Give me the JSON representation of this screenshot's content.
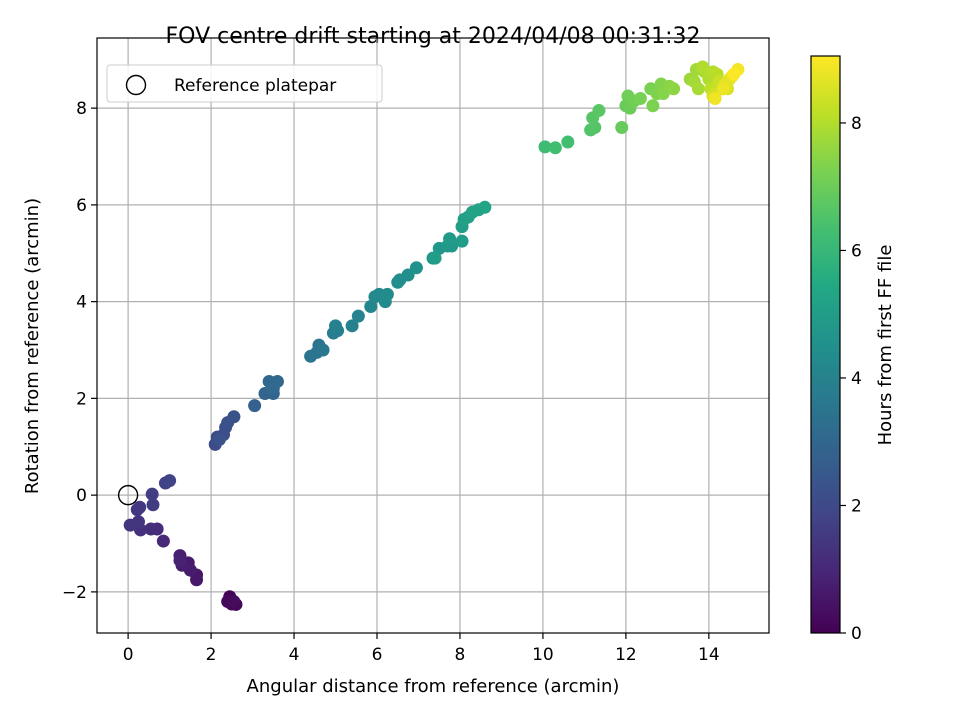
{
  "chart_data": {
    "type": "scatter",
    "title": "FOV centre drift starting at 2024/04/08 00:31:32",
    "xlabel": "Angular distance from reference (arcmin)",
    "ylabel": "Rotation from reference (arcmin)",
    "xlim": [
      -0.75,
      15.45
    ],
    "ylim": [
      -2.85,
      9.45
    ],
    "xticks": [
      0,
      2,
      4,
      6,
      8,
      10,
      12,
      14
    ],
    "xtick_labels": [
      "0",
      "2",
      "4",
      "6",
      "8",
      "10",
      "12",
      "14"
    ],
    "yticks": [
      -2,
      0,
      2,
      4,
      6,
      8
    ],
    "ytick_labels": [
      "−2",
      "0",
      "2",
      "4",
      "6",
      "8"
    ],
    "grid": true,
    "legend": {
      "placement": "top-left",
      "entries": [
        {
          "label": "Reference platepar",
          "marker": "hollow-circle"
        }
      ]
    },
    "reference_point": {
      "x": 0,
      "y": 0
    },
    "colorbar": {
      "label": "Hours from first FF file",
      "colormap": "viridis",
      "range": [
        0,
        9.05
      ],
      "ticks": [
        0,
        2,
        4,
        6,
        8
      ],
      "tick_labels": [
        "0",
        "2",
        "4",
        "6",
        "8"
      ]
    },
    "points": [
      [
        2.45,
        -2.1,
        0.05
      ],
      [
        2.5,
        -2.25,
        0.1
      ],
      [
        2.6,
        -2.26,
        0.15
      ],
      [
        2.4,
        -2.2,
        0.2
      ],
      [
        2.55,
        -2.2,
        0.25
      ],
      [
        1.65,
        -1.65,
        0.55
      ],
      [
        1.65,
        -1.75,
        0.6
      ],
      [
        1.45,
        -1.4,
        0.65
      ],
      [
        1.5,
        -1.55,
        0.7
      ],
      [
        1.3,
        -1.45,
        0.75
      ],
      [
        1.25,
        -1.25,
        0.8
      ],
      [
        1.25,
        -1.35,
        0.85
      ],
      [
        0.85,
        -0.95,
        1.05
      ],
      [
        0.7,
        -0.7,
        1.15
      ],
      [
        0.55,
        -0.7,
        1.2
      ],
      [
        0.3,
        -0.72,
        1.3
      ],
      [
        0.25,
        -0.55,
        1.35
      ],
      [
        0.05,
        -0.62,
        1.4
      ],
      [
        0.22,
        -0.3,
        1.45
      ],
      [
        0.28,
        -0.25,
        1.5
      ],
      [
        0.6,
        -0.2,
        1.6
      ],
      [
        0.58,
        0.02,
        1.65
      ],
      [
        0.9,
        0.25,
        1.75
      ],
      [
        1.0,
        0.3,
        1.8
      ],
      [
        2.1,
        1.05,
        2.05
      ],
      [
        2.15,
        1.2,
        2.1
      ],
      [
        2.3,
        1.25,
        2.15
      ],
      [
        2.35,
        1.4,
        2.2
      ],
      [
        2.4,
        1.5,
        2.25
      ],
      [
        2.55,
        1.62,
        2.3
      ],
      [
        2.2,
        1.15,
        2.35
      ],
      [
        3.05,
        1.85,
        2.8
      ],
      [
        3.3,
        2.1,
        2.9
      ],
      [
        3.5,
        2.1,
        2.95
      ],
      [
        3.4,
        2.35,
        3.0
      ],
      [
        3.6,
        2.35,
        3.05
      ],
      [
        3.5,
        2.2,
        3.1
      ],
      [
        4.4,
        2.87,
        3.45
      ],
      [
        4.55,
        2.95,
        3.5
      ],
      [
        4.6,
        3.1,
        3.55
      ],
      [
        4.7,
        3.0,
        3.6
      ],
      [
        4.95,
        3.35,
        3.8
      ],
      [
        5.05,
        3.4,
        3.85
      ],
      [
        5.0,
        3.5,
        3.9
      ],
      [
        5.4,
        3.5,
        3.95
      ],
      [
        5.55,
        3.7,
        4.0
      ],
      [
        5.85,
        3.9,
        4.15
      ],
      [
        5.95,
        4.1,
        4.2
      ],
      [
        6.05,
        4.15,
        4.25
      ],
      [
        6.2,
        4.0,
        4.3
      ],
      [
        6.25,
        4.15,
        4.35
      ],
      [
        6.5,
        4.4,
        4.4
      ],
      [
        6.55,
        4.45,
        4.45
      ],
      [
        6.75,
        4.55,
        4.5
      ],
      [
        6.95,
        4.7,
        4.55
      ],
      [
        7.35,
        4.9,
        4.7
      ],
      [
        7.5,
        5.1,
        4.75
      ],
      [
        7.7,
        5.15,
        4.8
      ],
      [
        7.8,
        5.15,
        4.85
      ],
      [
        7.75,
        5.3,
        4.9
      ],
      [
        8.05,
        5.25,
        4.95
      ],
      [
        7.4,
        4.9,
        5.0
      ],
      [
        8.05,
        5.55,
        5.05
      ],
      [
        8.1,
        5.7,
        5.1
      ],
      [
        8.2,
        5.75,
        5.15
      ],
      [
        8.3,
        5.85,
        5.2
      ],
      [
        8.45,
        5.9,
        5.25
      ],
      [
        8.6,
        5.95,
        5.3
      ],
      [
        10.05,
        7.2,
        6.2
      ],
      [
        10.3,
        7.18,
        6.25
      ],
      [
        10.6,
        7.3,
        6.3
      ],
      [
        11.15,
        7.55,
        6.55
      ],
      [
        11.25,
        7.6,
        6.6
      ],
      [
        11.2,
        7.8,
        6.65
      ],
      [
        11.35,
        7.95,
        6.7
      ],
      [
        11.9,
        7.6,
        6.9
      ],
      [
        12.0,
        8.05,
        6.95
      ],
      [
        12.1,
        8.0,
        7.0
      ],
      [
        12.05,
        8.25,
        7.05
      ],
      [
        12.2,
        8.15,
        7.1
      ],
      [
        12.35,
        8.2,
        7.15
      ],
      [
        12.6,
        8.4,
        7.2
      ],
      [
        12.65,
        8.05,
        7.25
      ],
      [
        12.75,
        8.3,
        7.3
      ],
      [
        12.85,
        8.5,
        7.35
      ],
      [
        12.9,
        8.3,
        7.4
      ],
      [
        13.05,
        8.45,
        7.45
      ],
      [
        13.15,
        8.4,
        7.5
      ],
      [
        13.55,
        8.6,
        7.7
      ],
      [
        13.7,
        8.8,
        7.75
      ],
      [
        13.65,
        8.55,
        7.8
      ],
      [
        13.75,
        8.4,
        7.85
      ],
      [
        13.9,
        8.75,
        7.9
      ],
      [
        13.85,
        8.85,
        7.95
      ],
      [
        14.0,
        8.6,
        8.0
      ],
      [
        14.1,
        8.75,
        8.05
      ],
      [
        14.2,
        8.7,
        8.1
      ],
      [
        14.05,
        8.4,
        8.15
      ],
      [
        14.25,
        8.55,
        8.3
      ],
      [
        14.15,
        8.3,
        8.4
      ],
      [
        14.1,
        8.25,
        8.45
      ],
      [
        14.45,
        8.4,
        8.55
      ],
      [
        14.5,
        8.6,
        8.65
      ],
      [
        14.4,
        8.5,
        8.7
      ],
      [
        14.55,
        8.65,
        8.75
      ],
      [
        14.35,
        8.4,
        8.8
      ],
      [
        14.15,
        8.2,
        8.85
      ],
      [
        14.7,
        8.8,
        8.9
      ],
      [
        14.6,
        8.7,
        9.0
      ]
    ]
  }
}
